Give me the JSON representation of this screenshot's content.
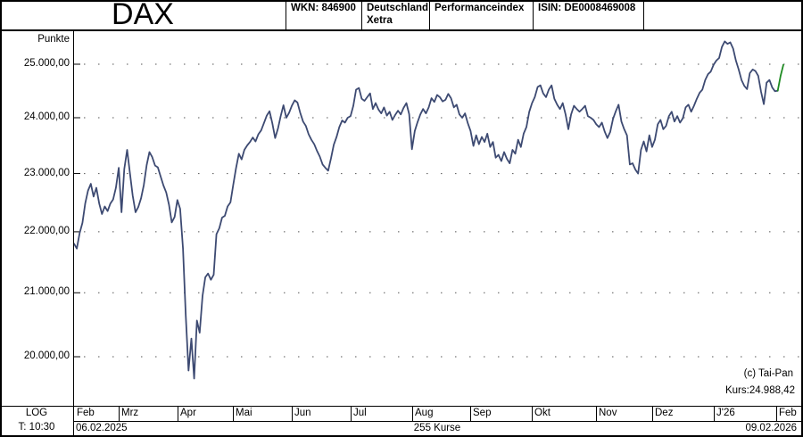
{
  "window": {
    "title": "DAX",
    "wkn": "WKN: 846900",
    "market_line1": "Deutschland",
    "market_line2": "Xetra",
    "index_type": "Performanceindex",
    "isin": "ISIN: DE0008469008"
  },
  "annotations": {
    "copyright": "(c) Tai-Pan",
    "last_price_label": "Kurs:24.988,42"
  },
  "footer": {
    "scale_label": "LOG",
    "timeframe_label": "T: 10:30",
    "start_date": "06.02.2025",
    "course_count": "255 Kurse",
    "end_date": "09.02.2026"
  },
  "colors": {
    "line": "#3d4a72",
    "last_segment": "#1e8b22",
    "grid": "#555555",
    "border": "#000000",
    "background": "#ffffff"
  },
  "chart_data": {
    "type": "line",
    "title": "DAX Performanceindex Xetra",
    "ylabel": "Punkte",
    "y_scale": "log",
    "ylim": [
      19500,
      25600
    ],
    "total_points": 255,
    "last_price": 24988.42,
    "y_ticks": [
      {
        "label": "25.000,00",
        "value": 25000
      },
      {
        "label": "24.000,00",
        "value": 24000
      },
      {
        "label": "23.000,00",
        "value": 23000
      },
      {
        "label": "22.000,00",
        "value": 22000
      },
      {
        "label": "21.000,00",
        "value": 21000
      },
      {
        "label": "20.000,00",
        "value": 20000
      }
    ],
    "x_months": [
      {
        "label": "Feb",
        "start_day": 0
      },
      {
        "label": "Mrz",
        "start_day": 16
      },
      {
        "label": "Apr",
        "start_day": 37
      },
      {
        "label": "Mai",
        "start_day": 57
      },
      {
        "label": "Jun",
        "start_day": 78
      },
      {
        "label": "Jul",
        "start_day": 99
      },
      {
        "label": "Aug",
        "start_day": 121
      },
      {
        "label": "Sep",
        "start_day": 142
      },
      {
        "label": "Okt",
        "start_day": 164
      },
      {
        "label": "Nov",
        "start_day": 187
      },
      {
        "label": "Dez",
        "start_day": 207
      },
      {
        "label": "J'26",
        "start_day": 229
      },
      {
        "label": "Feb",
        "start_day": 251.5
      }
    ],
    "series": [
      {
        "name": "dax-price-line",
        "color": "#3d4a72",
        "points": [
          [
            0,
            21800
          ],
          [
            1,
            21720
          ],
          [
            2,
            21980
          ],
          [
            3,
            22150
          ],
          [
            4,
            22480
          ],
          [
            5,
            22700
          ],
          [
            6,
            22820
          ],
          [
            7,
            22600
          ],
          [
            8,
            22750
          ],
          [
            9,
            22480
          ],
          [
            10,
            22300
          ],
          [
            11,
            22430
          ],
          [
            12,
            22350
          ],
          [
            13,
            22480
          ],
          [
            14,
            22550
          ],
          [
            15,
            22750
          ],
          [
            16,
            23100
          ],
          [
            17,
            22330
          ],
          [
            18,
            23080
          ],
          [
            19,
            23420
          ],
          [
            20,
            23010
          ],
          [
            21,
            22620
          ],
          [
            22,
            22330
          ],
          [
            23,
            22420
          ],
          [
            24,
            22570
          ],
          [
            25,
            22800
          ],
          [
            26,
            23150
          ],
          [
            27,
            23380
          ],
          [
            28,
            23290
          ],
          [
            29,
            23140
          ],
          [
            30,
            23110
          ],
          [
            31,
            22950
          ],
          [
            32,
            22790
          ],
          [
            33,
            22670
          ],
          [
            34,
            22460
          ],
          [
            35,
            22160
          ],
          [
            36,
            22250
          ],
          [
            37,
            22540
          ],
          [
            38,
            22390
          ],
          [
            39,
            21720
          ],
          [
            40,
            20640
          ],
          [
            41,
            19790
          ],
          [
            42,
            20280
          ],
          [
            43,
            19670
          ],
          [
            44,
            20560
          ],
          [
            45,
            20370
          ],
          [
            46,
            20950
          ],
          [
            47,
            21250
          ],
          [
            48,
            21310
          ],
          [
            49,
            21210
          ],
          [
            50,
            21290
          ],
          [
            51,
            21960
          ],
          [
            52,
            22060
          ],
          [
            53,
            22240
          ],
          [
            54,
            22270
          ],
          [
            55,
            22430
          ],
          [
            56,
            22500
          ],
          [
            57,
            22800
          ],
          [
            58,
            23090
          ],
          [
            59,
            23350
          ],
          [
            60,
            23250
          ],
          [
            61,
            23420
          ],
          [
            62,
            23500
          ],
          [
            63,
            23560
          ],
          [
            64,
            23640
          ],
          [
            65,
            23570
          ],
          [
            66,
            23700
          ],
          [
            67,
            23770
          ],
          [
            68,
            23900
          ],
          [
            69,
            24040
          ],
          [
            70,
            24120
          ],
          [
            71,
            23900
          ],
          [
            72,
            23630
          ],
          [
            73,
            23800
          ],
          [
            74,
            24030
          ],
          [
            75,
            24230
          ],
          [
            76,
            24000
          ],
          [
            77,
            24090
          ],
          [
            78,
            24220
          ],
          [
            79,
            24320
          ],
          [
            80,
            24280
          ],
          [
            81,
            24090
          ],
          [
            82,
            23930
          ],
          [
            83,
            23850
          ],
          [
            84,
            23700
          ],
          [
            85,
            23600
          ],
          [
            86,
            23520
          ],
          [
            87,
            23400
          ],
          [
            88,
            23300
          ],
          [
            89,
            23160
          ],
          [
            90,
            23100
          ],
          [
            91,
            23050
          ],
          [
            92,
            23270
          ],
          [
            93,
            23510
          ],
          [
            94,
            23650
          ],
          [
            95,
            23830
          ],
          [
            96,
            23950
          ],
          [
            97,
            23910
          ],
          [
            98,
            24000
          ],
          [
            99,
            24030
          ],
          [
            100,
            24220
          ],
          [
            101,
            24520
          ],
          [
            102,
            24550
          ],
          [
            103,
            24350
          ],
          [
            104,
            24310
          ],
          [
            105,
            24380
          ],
          [
            106,
            24450
          ],
          [
            107,
            24160
          ],
          [
            108,
            24270
          ],
          [
            109,
            24150
          ],
          [
            110,
            24080
          ],
          [
            111,
            24190
          ],
          [
            112,
            24040
          ],
          [
            113,
            24110
          ],
          [
            114,
            23960
          ],
          [
            115,
            24050
          ],
          [
            116,
            24130
          ],
          [
            117,
            24060
          ],
          [
            118,
            24180
          ],
          [
            119,
            24270
          ],
          [
            120,
            24065
          ],
          [
            121,
            23430
          ],
          [
            122,
            23760
          ],
          [
            123,
            23920
          ],
          [
            124,
            24060
          ],
          [
            125,
            24160
          ],
          [
            126,
            24080
          ],
          [
            127,
            24190
          ],
          [
            128,
            24360
          ],
          [
            129,
            24290
          ],
          [
            130,
            24420
          ],
          [
            131,
            24380
          ],
          [
            132,
            24300
          ],
          [
            133,
            24330
          ],
          [
            134,
            24440
          ],
          [
            135,
            24360
          ],
          [
            136,
            24190
          ],
          [
            137,
            24240
          ],
          [
            138,
            24060
          ],
          [
            139,
            24000
          ],
          [
            140,
            24080
          ],
          [
            141,
            23900
          ],
          [
            142,
            23760
          ],
          [
            143,
            23490
          ],
          [
            144,
            23680
          ],
          [
            145,
            23520
          ],
          [
            146,
            23650
          ],
          [
            147,
            23560
          ],
          [
            148,
            23710
          ],
          [
            149,
            23470
          ],
          [
            150,
            23560
          ],
          [
            151,
            23280
          ],
          [
            152,
            23330
          ],
          [
            153,
            23220
          ],
          [
            154,
            23380
          ],
          [
            155,
            23260
          ],
          [
            156,
            23180
          ],
          [
            157,
            23420
          ],
          [
            158,
            23350
          ],
          [
            159,
            23600
          ],
          [
            160,
            23470
          ],
          [
            161,
            23710
          ],
          [
            162,
            23830
          ],
          [
            163,
            24110
          ],
          [
            164,
            24270
          ],
          [
            165,
            24380
          ],
          [
            166,
            24570
          ],
          [
            167,
            24600
          ],
          [
            168,
            24450
          ],
          [
            169,
            24380
          ],
          [
            170,
            24520
          ],
          [
            171,
            24600
          ],
          [
            172,
            24350
          ],
          [
            173,
            24240
          ],
          [
            174,
            24160
          ],
          [
            175,
            24270
          ],
          [
            176,
            24060
          ],
          [
            177,
            23790
          ],
          [
            178,
            24060
          ],
          [
            179,
            24220
          ],
          [
            180,
            24160
          ],
          [
            181,
            24110
          ],
          [
            182,
            24160
          ],
          [
            183,
            24220
          ],
          [
            184,
            24030
          ],
          [
            185,
            24000
          ],
          [
            186,
            23960
          ],
          [
            187,
            23880
          ],
          [
            188,
            23830
          ],
          [
            189,
            23910
          ],
          [
            190,
            23750
          ],
          [
            191,
            23630
          ],
          [
            192,
            23740
          ],
          [
            193,
            23980
          ],
          [
            194,
            24120
          ],
          [
            195,
            24240
          ],
          [
            196,
            23930
          ],
          [
            197,
            23790
          ],
          [
            198,
            23680
          ],
          [
            199,
            23160
          ],
          [
            200,
            23180
          ],
          [
            201,
            23070
          ],
          [
            202,
            23000
          ],
          [
            203,
            23420
          ],
          [
            204,
            23570
          ],
          [
            205,
            23390
          ],
          [
            206,
            23680
          ],
          [
            207,
            23470
          ],
          [
            208,
            23600
          ],
          [
            209,
            23880
          ],
          [
            210,
            23960
          ],
          [
            211,
            23790
          ],
          [
            212,
            23850
          ],
          [
            213,
            24030
          ],
          [
            214,
            24110
          ],
          [
            215,
            23930
          ],
          [
            216,
            24030
          ],
          [
            217,
            23910
          ],
          [
            218,
            23990
          ],
          [
            219,
            24190
          ],
          [
            220,
            24240
          ],
          [
            221,
            24110
          ],
          [
            222,
            24220
          ],
          [
            223,
            24350
          ],
          [
            224,
            24460
          ],
          [
            225,
            24520
          ],
          [
            226,
            24700
          ],
          [
            227,
            24810
          ],
          [
            228,
            24860
          ],
          [
            229,
            24990
          ],
          [
            230,
            25070
          ],
          [
            231,
            25120
          ],
          [
            232,
            25330
          ],
          [
            233,
            25440
          ],
          [
            234,
            25390
          ],
          [
            235,
            25420
          ],
          [
            236,
            25300
          ],
          [
            237,
            25070
          ],
          [
            238,
            24900
          ],
          [
            239,
            24700
          ],
          [
            240,
            24590
          ],
          [
            241,
            24530
          ],
          [
            242,
            24830
          ],
          [
            243,
            24900
          ],
          [
            244,
            24870
          ],
          [
            245,
            24780
          ],
          [
            246,
            24480
          ],
          [
            247,
            24250
          ],
          [
            248,
            24650
          ],
          [
            249,
            24700
          ],
          [
            250,
            24560
          ],
          [
            251,
            24490
          ],
          [
            252,
            24500
          ]
        ]
      },
      {
        "name": "dax-last-up-segment",
        "color": "#1e8b22",
        "points": [
          [
            252,
            24500
          ],
          [
            253,
            24780
          ],
          [
            254,
            24988
          ]
        ]
      }
    ]
  }
}
